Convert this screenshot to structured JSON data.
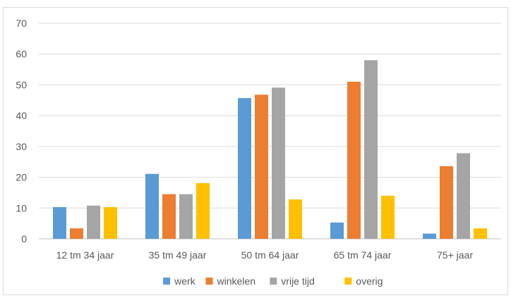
{
  "chart_data": {
    "type": "bar",
    "categories": [
      "12 tm 34 jaar",
      "35 tm 49 jaar",
      "50 tm 64 jaar",
      "65 tm 74 jaar",
      "75+ jaar"
    ],
    "series": [
      {
        "name": "werk",
        "color": "#5b9bd5",
        "values": [
          10.3,
          21.1,
          45.7,
          5.3,
          1.7
        ]
      },
      {
        "name": "winkelen",
        "color": "#ed7d31",
        "values": [
          3.4,
          14.5,
          46.8,
          51.0,
          23.6
        ]
      },
      {
        "name": "vrije tijd",
        "color": "#a5a5a5",
        "values": [
          10.8,
          14.5,
          49.1,
          58.0,
          27.8
        ]
      },
      {
        "name": "overig",
        "color": "#ffc000",
        "values": [
          10.3,
          18.1,
          12.8,
          14.0,
          3.4
        ]
      }
    ],
    "ylim": [
      0,
      70
    ],
    "yticks": [
      0,
      10,
      20,
      30,
      40,
      50,
      60,
      70
    ],
    "grid": true,
    "legend_position": "bottom",
    "title": "",
    "xlabel": "",
    "ylabel": ""
  }
}
